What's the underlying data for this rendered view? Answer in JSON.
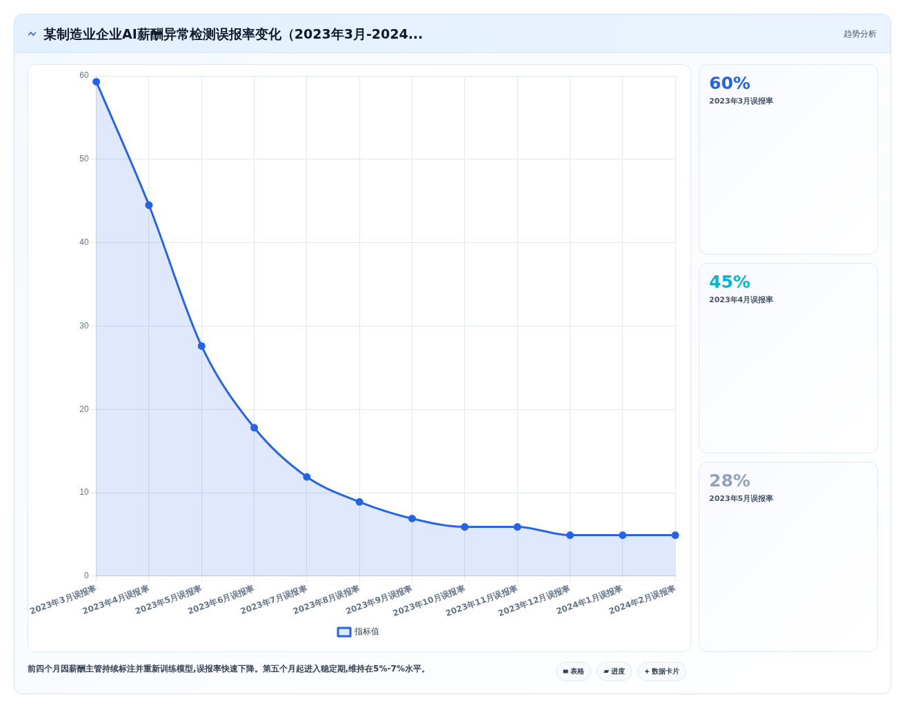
{
  "chart_data": [
    {
      "type": "area",
      "title": "某制造业企业AI薪酬异常检测误报率变化（2023年3月-2024...",
      "categories": [
        "2023年3月误报率",
        "2023年4月误报率",
        "2023年5月误报率",
        "2023年6月误报率",
        "2023年7月误报率",
        "2023年8月误报率",
        "2023年9月误报率",
        "2023年10月误报率",
        "2023年11月误报率",
        "2023年12月误报率",
        "2024年1月误报率",
        "2024年2月误报率"
      ],
      "series": [
        {
          "name": "指标值",
          "color": "#2563eb",
          "values": [
            59.3,
            44.5,
            27.6,
            17.8,
            11.9,
            8.9,
            6.9,
            5.9,
            5.9,
            4.9,
            4.9,
            4.9
          ]
        }
      ],
      "ylim": [
        0,
        60
      ],
      "yticks": [
        0,
        10,
        20,
        30,
        40,
        50,
        60
      ],
      "grid": true,
      "legend": "bottom",
      "marker": "circle",
      "annotations": [
        "前四个月因薪酬主管持续标注并重新训练模型,误报率快速下降。第五个月起进入稳定期,维持在5%-7%水平。",
        "表格",
        "进度",
        "数据卡片"
      ]
    },
    {
      "type": "other",
      "annotations": [
        "趋势分析",
        "60%",
        "2023年3月误报率",
        "45%",
        "2023年4月误报率",
        "28%",
        "2023年5月误报率"
      ]
    }
  ]
}
